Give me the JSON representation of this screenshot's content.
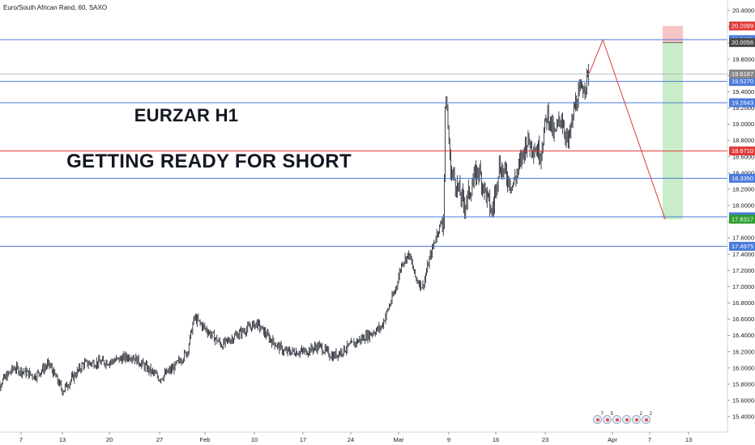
{
  "header": {
    "symbol": "Euro/South African Rand, 60, SAXO"
  },
  "annotations": {
    "line1": "EURZAR H1",
    "line2": "GETTING READY FOR SHORT"
  },
  "colors": {
    "blue_level": "#4a7ad9",
    "red_level": "#e03b3b",
    "candle": "#131722",
    "projection": "#e03b3b",
    "stop_zone": "#f7c5c5",
    "target_zone": "#c9ecc9",
    "target_label": "#2f9e2f",
    "price_label_dark": "#4a4a4a",
    "price_label_gray": "#888888"
  },
  "events": {
    "counts": [
      "7",
      "5",
      "",
      "",
      "2",
      "2"
    ]
  },
  "chart_data": {
    "type": "candlestick",
    "title": "",
    "xlabel": "",
    "ylabel": "",
    "ylim": [
      15.3,
      20.45
    ],
    "grid": false,
    "x_ticks": [
      "7",
      "13",
      "20",
      "27",
      "Feb",
      "10",
      "17",
      "24",
      "Mar",
      "9",
      "16",
      "23",
      "Apr",
      "7",
      "13"
    ],
    "y_ticks": [
      "20.4000",
      "20.2000",
      "20.0000",
      "19.8000",
      "19.6000",
      "19.4000",
      "19.2000",
      "19.0000",
      "18.8000",
      "18.6000",
      "18.4000",
      "18.2000",
      "18.0000",
      "17.8000",
      "17.6000",
      "17.4000",
      "17.2000",
      "17.0000",
      "16.8000",
      "16.6000",
      "16.4000",
      "16.2000",
      "16.0000",
      "15.8000",
      "15.6000",
      "15.4000"
    ],
    "levels": [
      {
        "value": 20.042,
        "label": "20.0420",
        "kind": "blue"
      },
      {
        "value": 19.527,
        "label": "19.5270",
        "kind": "blue"
      },
      {
        "value": 19.2643,
        "label": "19.2643",
        "kind": "blue"
      },
      {
        "value": 18.671,
        "label": "18.6710",
        "kind": "red"
      },
      {
        "value": 18.335,
        "label": "18.3350",
        "kind": "blue"
      },
      {
        "value": 17.8607,
        "label": "17.8607",
        "kind": "blue"
      },
      {
        "value": 17.4975,
        "label": "17.4975",
        "kind": "blue"
      },
      {
        "value": 19.6187,
        "label": "19.6187",
        "kind": "gray"
      }
    ],
    "position_labels": [
      {
        "value": 20.2099,
        "label": "20.2099",
        "kind": "stop"
      },
      {
        "value": 20.0056,
        "label": "20.0056",
        "kind": "entry"
      },
      {
        "value": 17.8317,
        "label": "17.8317",
        "kind": "target"
      }
    ],
    "position": {
      "stop": 20.2099,
      "entry": 20.0056,
      "target": 17.8317
    },
    "projection": [
      {
        "date": "Mar 30",
        "price": 19.62
      },
      {
        "date": "Apr 1",
        "price": 20.04
      },
      {
        "date": "Apr 10",
        "price": 17.83
      }
    ],
    "price_path": [
      {
        "date": "Jan 3",
        "price": 15.72
      },
      {
        "date": "Jan 6",
        "price": 16.0
      },
      {
        "date": "Jan 9",
        "price": 15.9
      },
      {
        "date": "Jan 11",
        "price": 16.05
      },
      {
        "date": "Jan 13",
        "price": 15.72
      },
      {
        "date": "Jan 16",
        "price": 16.05
      },
      {
        "date": "Jan 20",
        "price": 16.08
      },
      {
        "date": "Jan 23",
        "price": 16.15
      },
      {
        "date": "Jan 27",
        "price": 15.87
      },
      {
        "date": "Jan 29",
        "price": 16.0
      },
      {
        "date": "Jan 31",
        "price": 16.2
      },
      {
        "date": "Feb 1",
        "price": 16.62
      },
      {
        "date": "Feb 3",
        "price": 16.45
      },
      {
        "date": "Feb 5",
        "price": 16.28
      },
      {
        "date": "Feb 7",
        "price": 16.4
      },
      {
        "date": "Feb 10",
        "price": 16.55
      },
      {
        "date": "Feb 12",
        "price": 16.35
      },
      {
        "date": "Feb 14",
        "price": 16.2
      },
      {
        "date": "Feb 17",
        "price": 16.2
      },
      {
        "date": "Feb 19",
        "price": 16.27
      },
      {
        "date": "Feb 21",
        "price": 16.14
      },
      {
        "date": "Feb 24",
        "price": 16.3
      },
      {
        "date": "Feb 26",
        "price": 16.4
      },
      {
        "date": "Feb 28",
        "price": 16.5
      },
      {
        "date": "Mar 2",
        "price": 16.95
      },
      {
        "date": "Mar 3",
        "price": 17.3
      },
      {
        "date": "Mar 4",
        "price": 17.4
      },
      {
        "date": "Mar 5",
        "price": 17.1
      },
      {
        "date": "Mar 6",
        "price": 17.0
      },
      {
        "date": "Mar 7",
        "price": 17.35
      },
      {
        "date": "Mar 8",
        "price": 17.65
      },
      {
        "date": "Mar 9",
        "price": 17.85
      },
      {
        "date": "Mar 9.3",
        "price": 19.45
      },
      {
        "date": "Mar 10",
        "price": 18.45
      },
      {
        "date": "Mar 12",
        "price": 18.0
      },
      {
        "date": "Mar 14",
        "price": 18.45
      },
      {
        "date": "Mar 16",
        "price": 17.9
      },
      {
        "date": "Mar 17",
        "price": 18.5
      },
      {
        "date": "Mar 19",
        "price": 18.25
      },
      {
        "date": "Mar 20",
        "price": 18.5
      },
      {
        "date": "Mar 21",
        "price": 18.8
      },
      {
        "date": "Mar 23",
        "price": 18.65
      },
      {
        "date": "Mar 24",
        "price": 19.15
      },
      {
        "date": "Mar 25",
        "price": 18.85
      },
      {
        "date": "Mar 26",
        "price": 19.1
      },
      {
        "date": "Mar 27",
        "price": 18.75
      },
      {
        "date": "Mar 28",
        "price": 19.25
      },
      {
        "date": "Mar 30",
        "price": 19.62
      }
    ]
  }
}
